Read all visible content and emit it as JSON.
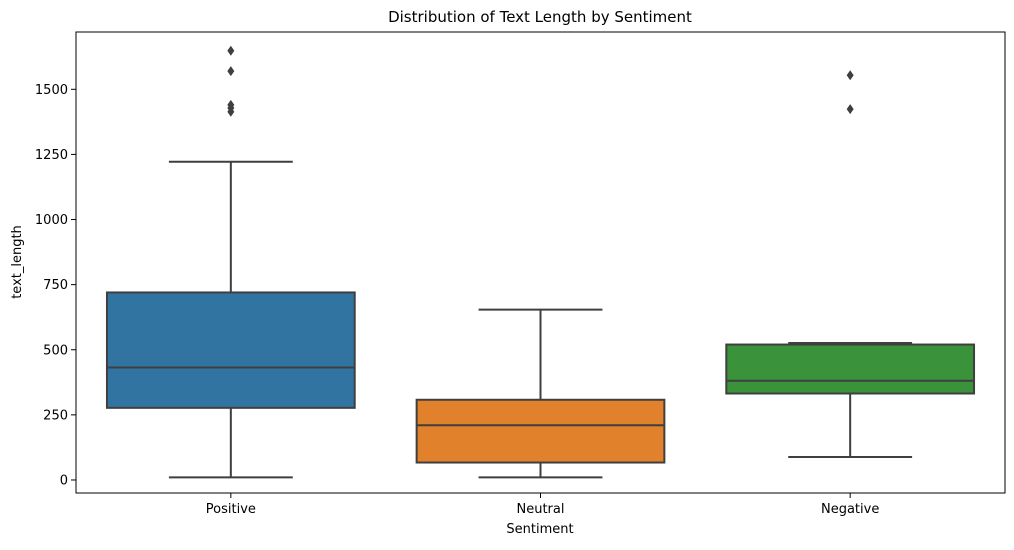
{
  "chart_data": {
    "type": "box",
    "title": "Distribution of Text Length by Sentiment",
    "xlabel": "Sentiment",
    "ylabel": "text_length",
    "ylim": [
      -50,
      1720
    ],
    "yticks": [
      0,
      250,
      500,
      750,
      1000,
      1250,
      1500
    ],
    "grid": false,
    "legend": "none",
    "categories": [
      "Positive",
      "Neutral",
      "Negative"
    ],
    "boxes": [
      {
        "category": "Positive",
        "color": "#3274a1",
        "whisker_low": 10,
        "q1": 277,
        "median": 432,
        "q3": 720,
        "whisker_high": 1222,
        "outliers": [
          1414,
          1428,
          1440,
          1570,
          1648
        ]
      },
      {
        "category": "Neutral",
        "color": "#e1812c",
        "whisker_low": 10,
        "q1": 67,
        "median": 210,
        "q3": 308,
        "whisker_high": 654,
        "outliers": []
      },
      {
        "category": "Negative",
        "color": "#3a923a",
        "whisker_low": 88,
        "q1": 332,
        "median": 381,
        "q3": 520,
        "whisker_high": 526,
        "outliers": [
          1424,
          1554
        ]
      }
    ]
  }
}
